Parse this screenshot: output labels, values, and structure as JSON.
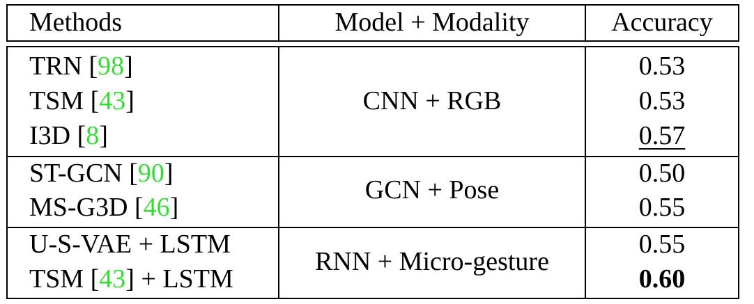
{
  "header": {
    "methods": "Methods",
    "model_modality": "Model + Modality",
    "accuracy": "Accuracy"
  },
  "groups": [
    {
      "model_modality": "CNN + RGB",
      "rows": [
        {
          "method": "TRN",
          "cite": "98",
          "suffix": "",
          "accuracy": "0.53",
          "style": ""
        },
        {
          "method": "TSM",
          "cite": "43",
          "suffix": "",
          "accuracy": "0.53",
          "style": ""
        },
        {
          "method": "I3D",
          "cite": "8",
          "suffix": "",
          "accuracy": "0.57",
          "style": "underline"
        }
      ]
    },
    {
      "model_modality": "GCN + Pose",
      "rows": [
        {
          "method": "ST-GCN",
          "cite": "90",
          "suffix": "",
          "accuracy": "0.50",
          "style": ""
        },
        {
          "method": "MS-G3D",
          "cite": "46",
          "suffix": "",
          "accuracy": "0.55",
          "style": ""
        }
      ]
    },
    {
      "model_modality": "RNN + Micro-gesture",
      "rows": [
        {
          "method": "U-S-VAE + LSTM",
          "cite": "",
          "suffix": "",
          "accuracy": "0.55",
          "style": ""
        },
        {
          "method": "TSM",
          "cite": "43",
          "suffix": " + LSTM",
          "accuracy": "0.60",
          "style": "bold"
        }
      ]
    }
  ],
  "colors": {
    "citation": "#33dd33",
    "border": "#000000"
  }
}
